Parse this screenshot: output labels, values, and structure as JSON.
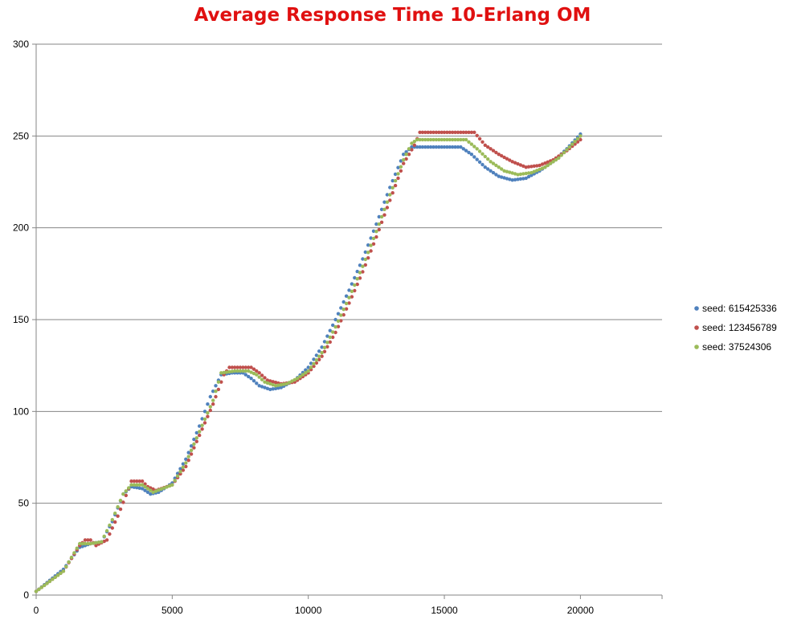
{
  "chart_data": {
    "type": "scatter",
    "title": "Average Response Time 10-Erlang OM",
    "xlabel": "",
    "ylabel": "",
    "xlim": [
      0,
      23000
    ],
    "ylim": [
      0,
      300
    ],
    "x_ticks": [
      0,
      5000,
      10000,
      15000,
      20000
    ],
    "y_ticks": [
      0,
      50,
      100,
      150,
      200,
      250,
      300
    ],
    "grid": "horizontal",
    "legend_position": "right",
    "series": [
      {
        "name": "seed: 615425336",
        "color": "#4f81bd",
        "points": [
          [
            0,
            2
          ],
          [
            1000,
            14
          ],
          [
            1600,
            26
          ],
          [
            2000,
            28
          ],
          [
            2400,
            29
          ],
          [
            2800,
            40
          ],
          [
            3200,
            55
          ],
          [
            3500,
            59
          ],
          [
            3900,
            58
          ],
          [
            4200,
            55
          ],
          [
            4500,
            56
          ],
          [
            5000,
            61
          ],
          [
            5500,
            74
          ],
          [
            6000,
            92
          ],
          [
            6400,
            108
          ],
          [
            6800,
            120
          ],
          [
            7200,
            121
          ],
          [
            7600,
            121
          ],
          [
            7900,
            118
          ],
          [
            8200,
            114
          ],
          [
            8600,
            112
          ],
          [
            9000,
            113
          ],
          [
            9500,
            117
          ],
          [
            10000,
            124
          ],
          [
            10500,
            135
          ],
          [
            11000,
            150
          ],
          [
            11500,
            166
          ],
          [
            12000,
            183
          ],
          [
            12500,
            202
          ],
          [
            13000,
            222
          ],
          [
            13500,
            240
          ],
          [
            13800,
            244
          ],
          [
            14500,
            244
          ],
          [
            15000,
            244
          ],
          [
            15600,
            244
          ],
          [
            16000,
            240
          ],
          [
            16500,
            233
          ],
          [
            17000,
            228
          ],
          [
            17500,
            226
          ],
          [
            18000,
            227
          ],
          [
            18500,
            231
          ],
          [
            19000,
            236
          ],
          [
            19500,
            243
          ],
          [
            20000,
            251
          ]
        ]
      },
      {
        "name": "seed: 123456789",
        "color": "#c0504d",
        "points": [
          [
            0,
            2
          ],
          [
            1000,
            13
          ],
          [
            1600,
            27
          ],
          [
            1800,
            30
          ],
          [
            2000,
            30
          ],
          [
            2200,
            27
          ],
          [
            2600,
            30
          ],
          [
            3000,
            43
          ],
          [
            3400,
            58
          ],
          [
            3500,
            62
          ],
          [
            3900,
            62
          ],
          [
            4100,
            59
          ],
          [
            4400,
            57
          ],
          [
            5000,
            60
          ],
          [
            5500,
            70
          ],
          [
            6000,
            87
          ],
          [
            6500,
            104
          ],
          [
            6900,
            120
          ],
          [
            7100,
            124
          ],
          [
            7500,
            124
          ],
          [
            7900,
            124
          ],
          [
            8200,
            121
          ],
          [
            8500,
            117
          ],
          [
            9000,
            115
          ],
          [
            9500,
            116
          ],
          [
            10000,
            121
          ],
          [
            10500,
            130
          ],
          [
            11000,
            143
          ],
          [
            11500,
            159
          ],
          [
            12000,
            176
          ],
          [
            12500,
            195
          ],
          [
            13000,
            215
          ],
          [
            13500,
            235
          ],
          [
            13900,
            245
          ],
          [
            14100,
            252
          ],
          [
            14500,
            252
          ],
          [
            15500,
            252
          ],
          [
            16100,
            252
          ],
          [
            16500,
            245
          ],
          [
            17000,
            240
          ],
          [
            17500,
            236
          ],
          [
            18000,
            233
          ],
          [
            18500,
            234
          ],
          [
            19000,
            237
          ],
          [
            19500,
            242
          ],
          [
            20000,
            248
          ]
        ]
      },
      {
        "name": "seed: 37524306",
        "color": "#9bbb59",
        "points": [
          [
            0,
            2
          ],
          [
            1000,
            13
          ],
          [
            1600,
            28
          ],
          [
            2000,
            28
          ],
          [
            2400,
            29
          ],
          [
            2800,
            41
          ],
          [
            3200,
            55
          ],
          [
            3500,
            60
          ],
          [
            3900,
            60
          ],
          [
            4300,
            56
          ],
          [
            5000,
            60
          ],
          [
            5500,
            72
          ],
          [
            6000,
            89
          ],
          [
            6500,
            106
          ],
          [
            6800,
            121
          ],
          [
            7300,
            122
          ],
          [
            7800,
            122
          ],
          [
            8100,
            120
          ],
          [
            8400,
            116
          ],
          [
            8800,
            114
          ],
          [
            9200,
            115
          ],
          [
            9600,
            118
          ],
          [
            10000,
            122
          ],
          [
            10500,
            132
          ],
          [
            11000,
            146
          ],
          [
            11500,
            162
          ],
          [
            12000,
            179
          ],
          [
            12500,
            198
          ],
          [
            13000,
            218
          ],
          [
            13500,
            237
          ],
          [
            13800,
            246
          ],
          [
            14000,
            248
          ],
          [
            14500,
            248
          ],
          [
            15000,
            248
          ],
          [
            15800,
            248
          ],
          [
            16200,
            243
          ],
          [
            16700,
            236
          ],
          [
            17200,
            231
          ],
          [
            17700,
            229
          ],
          [
            18200,
            230
          ],
          [
            18700,
            233
          ],
          [
            19200,
            238
          ],
          [
            19600,
            244
          ],
          [
            20000,
            250
          ]
        ]
      }
    ]
  }
}
